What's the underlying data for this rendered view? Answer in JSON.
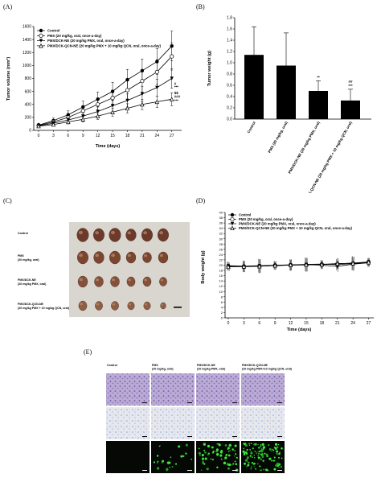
{
  "chart_data": [
    {
      "panel_label": "(A)",
      "type": "line",
      "xlabel": "Time (days)",
      "ylabel": "Tumor volume (mm³)",
      "x": [
        0,
        3,
        6,
        9,
        12,
        15,
        18,
        21,
        24,
        27
      ],
      "xticks": [
        "0",
        "3",
        "6",
        "9",
        "12",
        "15",
        "18",
        "21",
        "24",
        "27"
      ],
      "ylim": [
        0,
        1600
      ],
      "yticks": [
        "0",
        "200",
        "400",
        "600",
        "800",
        "1000",
        "1200",
        "1400",
        "1600"
      ],
      "legend": "top-left",
      "series": [
        {
          "name": "Control",
          "marker": "filled-circle",
          "values": [
            80,
            150,
            240,
            360,
            480,
            600,
            780,
            920,
            1060,
            1300
          ],
          "errors": [
            30,
            40,
            60,
            90,
            110,
            140,
            160,
            180,
            200,
            230
          ]
        },
        {
          "name": "PMX (20 mg/kg, oral, once-a-day)",
          "marker": "open-circle",
          "values": [
            75,
            130,
            200,
            300,
            400,
            500,
            620,
            760,
            900,
            1140
          ],
          "errors": [
            25,
            40,
            60,
            80,
            100,
            120,
            150,
            170,
            190,
            210
          ]
        },
        {
          "name": "PMX/DCK-NE (20 mg/kg PMX, oral, once-a-day)",
          "marker": "filled-triangle",
          "values": [
            70,
            110,
            160,
            220,
            290,
            380,
            460,
            560,
            660,
            800
          ],
          "errors": [
            20,
            30,
            40,
            55,
            70,
            90,
            100,
            120,
            130,
            150
          ]
        },
        {
          "name": "PMX/DCK-QCN-NE (20 mg/kg PMX + 10 mg/kg QCN, oral, once-a-day)",
          "marker": "open-triangle",
          "values": [
            65,
            90,
            130,
            170,
            220,
            280,
            340,
            400,
            440,
            480
          ],
          "errors": [
            15,
            25,
            30,
            40,
            50,
            60,
            70,
            80,
            90,
            100
          ]
        }
      ],
      "annotations": [
        {
          "text": "#",
          "x": 27,
          "y": 700
        },
        {
          "text": "***",
          "x": 27,
          "y": 650
        },
        {
          "text": "$$",
          "x": 27,
          "y": 560
        },
        {
          "text": "###",
          "x": 27,
          "y": 500
        },
        {
          "text": "***",
          "x": 27,
          "y": 440
        }
      ]
    },
    {
      "panel_label": "(B)",
      "type": "bar",
      "ylabel": "Tumor weight (g)",
      "ylim": [
        0,
        1.8
      ],
      "yticks": [
        "0.0",
        "0.2",
        "0.4",
        "0.6",
        "0.8",
        "1.0",
        "1.2",
        "1.4",
        "1.6",
        "1.8"
      ],
      "categories": [
        "Control",
        "PMX (20 mg/kg, oral)",
        "PMX/DCK-NE (20 mg/kg PMX, oral)",
        "PMX/DCK-QCN-NE (20 mg/kg PMX + 10 mg/kg QCN, oral)"
      ],
      "values": [
        1.14,
        0.95,
        0.5,
        0.33
      ],
      "errors": [
        0.5,
        0.58,
        0.18,
        0.2
      ],
      "annotations": [
        {
          "text": "**",
          "category": 2
        },
        {
          "text": "##",
          "category": 3
        },
        {
          "text": "***",
          "category": 3
        }
      ]
    },
    {
      "panel_label": "(D)",
      "type": "line",
      "xlabel": "Time (days)",
      "ylabel": "Body weight (g)",
      "x": [
        0,
        3,
        6,
        9,
        12,
        15,
        18,
        21,
        24,
        27
      ],
      "xticks": [
        "0",
        "3",
        "6",
        "9",
        "12",
        "15",
        "18",
        "21",
        "24",
        "27"
      ],
      "ylim": [
        0,
        40
      ],
      "yticks": [
        "0",
        "2",
        "4",
        "6",
        "8",
        "10",
        "12",
        "14",
        "16",
        "18",
        "20",
        "22",
        "24",
        "26",
        "28",
        "30",
        "32",
        "34",
        "36",
        "38",
        "40"
      ],
      "legend": "top-left",
      "series": [
        {
          "name": "Control",
          "marker": "filled-circle",
          "values": [
            19.8,
            19.6,
            19.8,
            20.0,
            20.1,
            20.3,
            20.4,
            20.2,
            20.6,
            21.0
          ]
        },
        {
          "name": "PMX (20 mg/kg, oral, once-a-day)",
          "marker": "open-circle",
          "values": [
            19.5,
            19.4,
            19.6,
            19.9,
            20.0,
            20.1,
            20.2,
            20.5,
            20.8,
            21.2
          ]
        },
        {
          "name": "PMX/DCK-NE (20 mg/kg PMX, oral, once-a-day)",
          "marker": "filled-triangle",
          "values": [
            19.6,
            19.5,
            19.7,
            19.8,
            20.0,
            20.2,
            20.0,
            19.5,
            20.4,
            20.9
          ]
        },
        {
          "name": "PMX/DCK-QCN-NE (20 mg/kg PMX + 10 mg/kg QCN, oral, once-a-day)",
          "marker": "open-triangle",
          "values": [
            19.4,
            19.5,
            19.6,
            19.9,
            20.1,
            20.2,
            20.3,
            20.6,
            20.7,
            21.1
          ]
        }
      ]
    }
  ],
  "panel_c": {
    "label": "(C)",
    "rows": [
      {
        "line1": "Control",
        "line2": ""
      },
      {
        "line1": "PMX",
        "line2": "(20 mg/kg, oral)"
      },
      {
        "line1": "PMX/DCK-NE",
        "line2": "(20 mg/kg PMX, oral)"
      },
      {
        "line1": "PMX/DCK-QCN-NE",
        "line2": "(20 mg/kg PMX + 10 mg/kg QCN, oral)"
      }
    ]
  },
  "panel_e": {
    "label": "(E)",
    "columns": [
      {
        "line1": "Control",
        "line2": ""
      },
      {
        "line1": "PMX",
        "line2": "(20 mg/kg, oral)"
      },
      {
        "line1": "PMX/DCK-NE",
        "line2": "(20 mg/kg PMX, oral)"
      },
      {
        "line1": "PMX/DCK-QCN-NE",
        "line2": "(20 mg/kg PMX+10 mg/kg QCN, oral)"
      }
    ]
  }
}
